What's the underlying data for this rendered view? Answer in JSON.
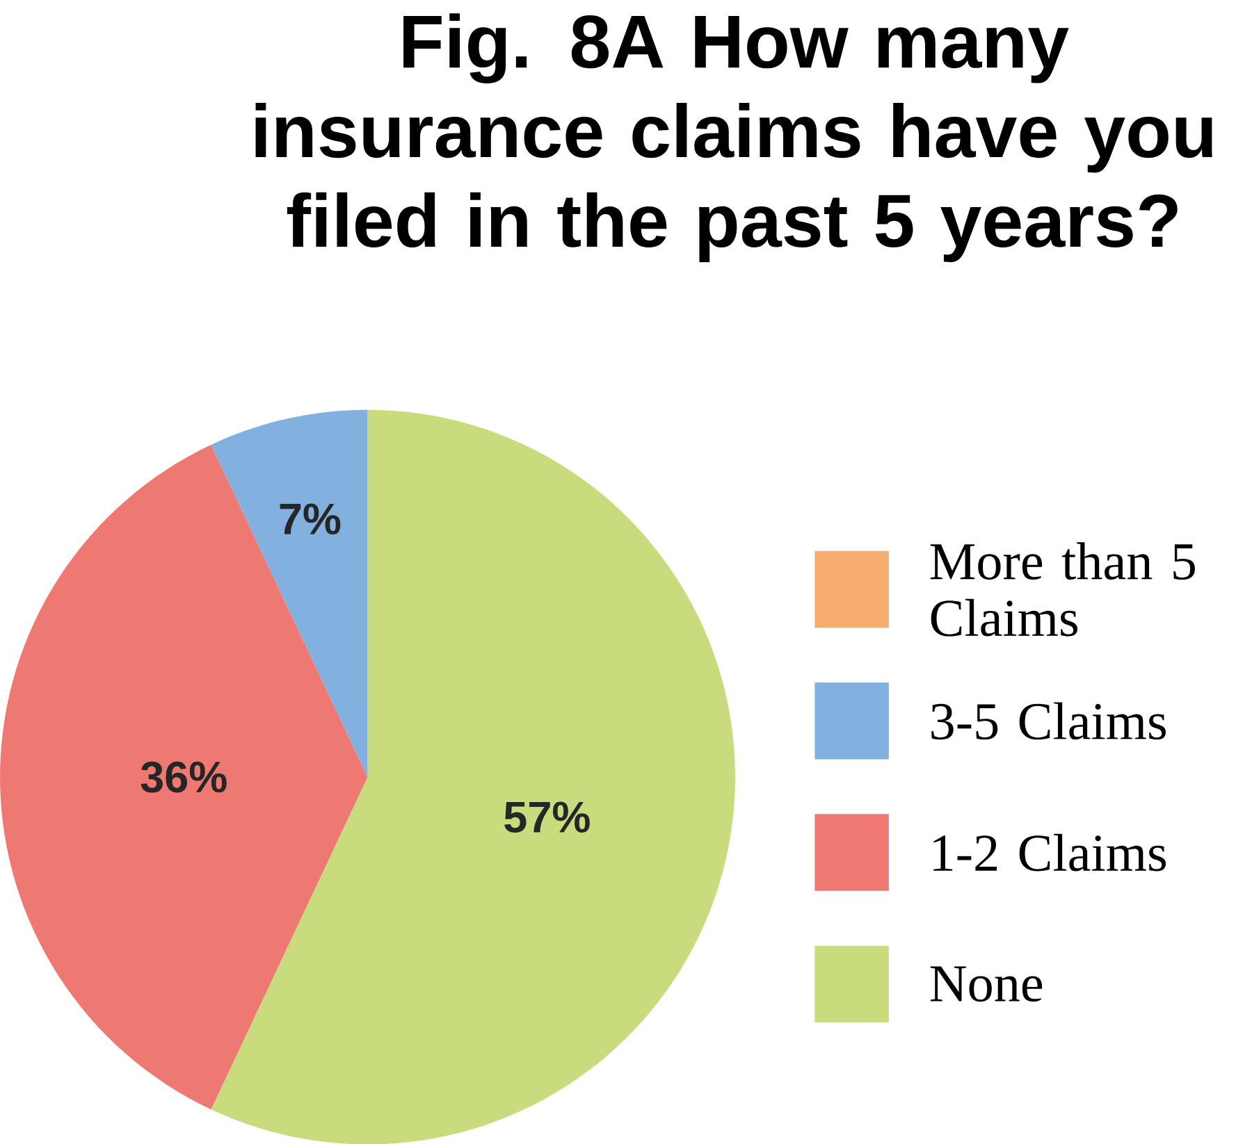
{
  "chart_data": {
    "type": "pie",
    "title": "Fig. 8A How many insurance claims have you filed in the past 5 years?",
    "categories": [
      "None",
      "1-2 Claims",
      "3-5 Claims",
      "More than 5 Claims"
    ],
    "values": [
      57,
      36,
      7,
      0
    ],
    "colors": [
      "#c8dc7e",
      "#ee7872",
      "#82b1e0",
      "#f8ad70"
    ],
    "value_labels": [
      "57%",
      "36%",
      "7%",
      null
    ],
    "legend": "right"
  }
}
